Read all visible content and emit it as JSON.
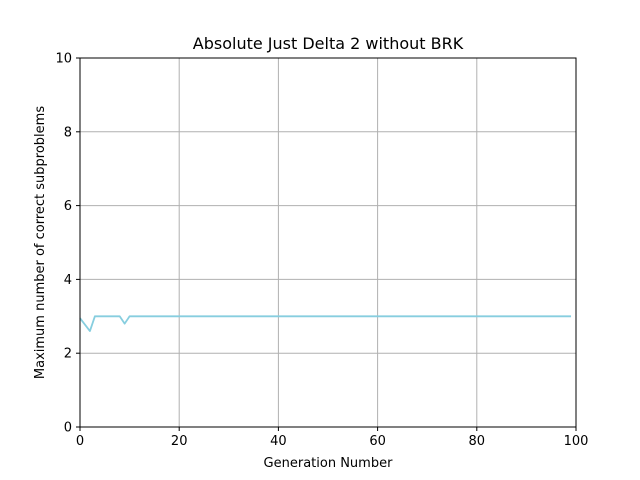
{
  "chart_data": {
    "type": "line",
    "title": "Absolute Just Delta 2 without BRK",
    "xlabel": "Generation Number",
    "ylabel": "Maximum number of correct subproblems",
    "xlim": [
      0,
      100
    ],
    "ylim": [
      0,
      10
    ],
    "xticks": [
      0,
      20,
      40,
      60,
      80,
      100
    ],
    "yticks": [
      0,
      2,
      4,
      6,
      8,
      10
    ],
    "grid": true,
    "series": [
      {
        "color": "#87cedf",
        "x": [
          0,
          2,
          3,
          8,
          9,
          10,
          99
        ],
        "y": [
          2.95,
          2.6,
          3.0,
          3.0,
          2.8,
          3.0,
          3.0
        ]
      }
    ]
  }
}
